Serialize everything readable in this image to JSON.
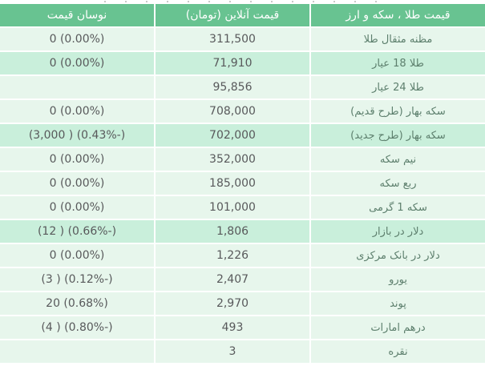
{
  "colors": {
    "header_bg": "#68c391",
    "row_light_bg": "#e7f6ec",
    "row_highlight_bg": "#c9efdb",
    "header_text": "#ffffff",
    "label_text": "#5d7f6d",
    "number_text": "#58595b"
  },
  "table": {
    "headers": {
      "item": "قیمت طلا ، سکه و ارز",
      "price": "قیمت آنلاین (تومان)",
      "change": "نوسان قیمت"
    },
    "rows": [
      {
        "item": "مظنه مثقال طلا",
        "price": "311,500",
        "change": "0 (0.00%)",
        "highlight": false
      },
      {
        "item": "طلا 18 عیار",
        "price": "71,910",
        "change": "0 (0.00%)",
        "highlight": true
      },
      {
        "item": "طلا 24 عیار",
        "price": "95,856",
        "change": "",
        "highlight": false
      },
      {
        "item": "سکه بهار (طرح قدیم)",
        "price": "708,000",
        "change": "0 (0.00%)",
        "highlight": false
      },
      {
        "item": "سکه بهار (طرح جدید)",
        "price": "702,000",
        "change": "(3,000 ) (0.43%-)",
        "highlight": true
      },
      {
        "item": "نیم سکه",
        "price": "352,000",
        "change": "0 (0.00%)",
        "highlight": false
      },
      {
        "item": "ربع سکه",
        "price": "185,000",
        "change": "0 (0.00%)",
        "highlight": false
      },
      {
        "item": "سکه 1 گرمی",
        "price": "101,000",
        "change": "0 (0.00%)",
        "highlight": false
      },
      {
        "item": "دلار در بازار",
        "price": "1,806",
        "change": "(12 ) (0.66%-)",
        "highlight": true
      },
      {
        "item": "دلار در بانک مرکزی",
        "price": "1,226",
        "change": "0 (0.00%)",
        "highlight": false
      },
      {
        "item": "یورو",
        "price": "2,407",
        "change": "(3 ) (0.12%-)",
        "highlight": false
      },
      {
        "item": "پوند",
        "price": "2,970",
        "change": "20 (0.68%)",
        "highlight": false
      },
      {
        "item": "درهم امارات",
        "price": "493",
        "change": "(4 ) (0.80%-)",
        "highlight": false
      },
      {
        "item": "نقره",
        "price": "3",
        "change": "",
        "highlight": false
      }
    ]
  }
}
